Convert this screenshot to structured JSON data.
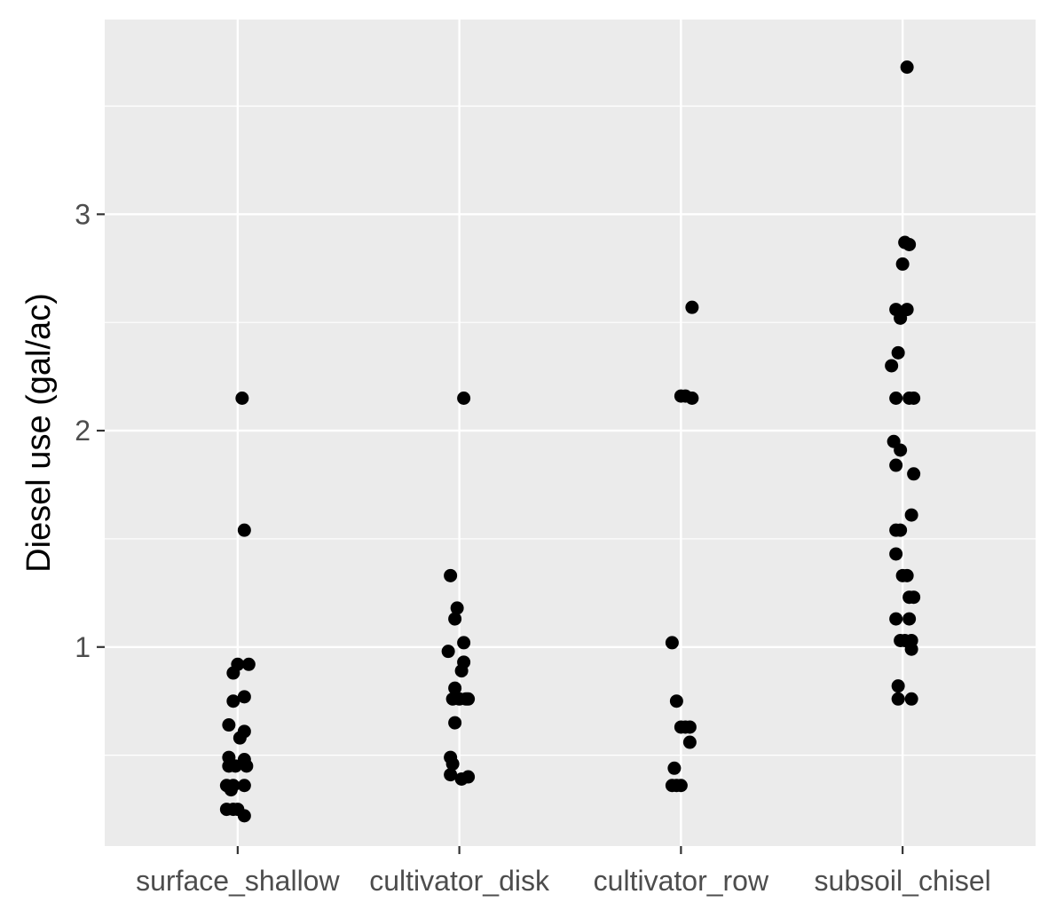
{
  "chart_data": {
    "type": "scatter",
    "jitter": true,
    "title": "",
    "xlabel": "",
    "ylabel": "Diesel use (gal/ac)",
    "categories": [
      "surface_shallow",
      "cultivator_disk",
      "cultivator_row",
      "subsoil_chisel"
    ],
    "ylim": [
      0.08,
      3.9
    ],
    "yticks": [
      1,
      2,
      3
    ],
    "grid": true,
    "legend": "none",
    "colors": {
      "panel": "#EBEBEB",
      "grid": "#FFFFFF",
      "point": "#000000",
      "tick": "#333333"
    },
    "points": [
      {
        "category": "surface_shallow",
        "jitter": 0.02,
        "y": 2.15
      },
      {
        "category": "surface_shallow",
        "jitter": 0.03,
        "y": 1.54
      },
      {
        "category": "surface_shallow",
        "jitter": 0.0,
        "y": 0.92
      },
      {
        "category": "surface_shallow",
        "jitter": 0.05,
        "y": 0.92
      },
      {
        "category": "surface_shallow",
        "jitter": -0.02,
        "y": 0.88
      },
      {
        "category": "surface_shallow",
        "jitter": 0.03,
        "y": 0.77
      },
      {
        "category": "surface_shallow",
        "jitter": -0.02,
        "y": 0.75
      },
      {
        "category": "surface_shallow",
        "jitter": -0.04,
        "y": 0.64
      },
      {
        "category": "surface_shallow",
        "jitter": 0.03,
        "y": 0.61
      },
      {
        "category": "surface_shallow",
        "jitter": 0.01,
        "y": 0.58
      },
      {
        "category": "surface_shallow",
        "jitter": -0.04,
        "y": 0.49
      },
      {
        "category": "surface_shallow",
        "jitter": 0.03,
        "y": 0.48
      },
      {
        "category": "surface_shallow",
        "jitter": -0.04,
        "y": 0.45
      },
      {
        "category": "surface_shallow",
        "jitter": -0.01,
        "y": 0.45
      },
      {
        "category": "surface_shallow",
        "jitter": 0.04,
        "y": 0.45
      },
      {
        "category": "surface_shallow",
        "jitter": -0.05,
        "y": 0.36
      },
      {
        "category": "surface_shallow",
        "jitter": -0.02,
        "y": 0.36
      },
      {
        "category": "surface_shallow",
        "jitter": 0.03,
        "y": 0.36
      },
      {
        "category": "surface_shallow",
        "jitter": -0.03,
        "y": 0.34
      },
      {
        "category": "surface_shallow",
        "jitter": -0.05,
        "y": 0.25
      },
      {
        "category": "surface_shallow",
        "jitter": -0.02,
        "y": 0.25
      },
      {
        "category": "surface_shallow",
        "jitter": 0.0,
        "y": 0.25
      },
      {
        "category": "surface_shallow",
        "jitter": 0.03,
        "y": 0.22
      },
      {
        "category": "cultivator_disk",
        "jitter": 0.02,
        "y": 2.15
      },
      {
        "category": "cultivator_disk",
        "jitter": -0.04,
        "y": 1.33
      },
      {
        "category": "cultivator_disk",
        "jitter": -0.01,
        "y": 1.18
      },
      {
        "category": "cultivator_disk",
        "jitter": -0.02,
        "y": 1.13
      },
      {
        "category": "cultivator_disk",
        "jitter": 0.02,
        "y": 1.02
      },
      {
        "category": "cultivator_disk",
        "jitter": -0.05,
        "y": 0.98
      },
      {
        "category": "cultivator_disk",
        "jitter": 0.02,
        "y": 0.93
      },
      {
        "category": "cultivator_disk",
        "jitter": 0.01,
        "y": 0.89
      },
      {
        "category": "cultivator_disk",
        "jitter": -0.02,
        "y": 0.81
      },
      {
        "category": "cultivator_disk",
        "jitter": -0.03,
        "y": 0.76
      },
      {
        "category": "cultivator_disk",
        "jitter": 0.0,
        "y": 0.76
      },
      {
        "category": "cultivator_disk",
        "jitter": 0.03,
        "y": 0.76
      },
      {
        "category": "cultivator_disk",
        "jitter": 0.04,
        "y": 0.76
      },
      {
        "category": "cultivator_disk",
        "jitter": -0.02,
        "y": 0.65
      },
      {
        "category": "cultivator_disk",
        "jitter": -0.04,
        "y": 0.49
      },
      {
        "category": "cultivator_disk",
        "jitter": -0.03,
        "y": 0.46
      },
      {
        "category": "cultivator_disk",
        "jitter": -0.04,
        "y": 0.41
      },
      {
        "category": "cultivator_disk",
        "jitter": 0.01,
        "y": 0.39
      },
      {
        "category": "cultivator_disk",
        "jitter": 0.04,
        "y": 0.4
      },
      {
        "category": "cultivator_row",
        "jitter": 0.05,
        "y": 2.57
      },
      {
        "category": "cultivator_row",
        "jitter": 0.0,
        "y": 2.16
      },
      {
        "category": "cultivator_row",
        "jitter": 0.02,
        "y": 2.16
      },
      {
        "category": "cultivator_row",
        "jitter": 0.05,
        "y": 2.15
      },
      {
        "category": "cultivator_row",
        "jitter": -0.04,
        "y": 1.02
      },
      {
        "category": "cultivator_row",
        "jitter": -0.02,
        "y": 0.75
      },
      {
        "category": "cultivator_row",
        "jitter": 0.0,
        "y": 0.63
      },
      {
        "category": "cultivator_row",
        "jitter": 0.02,
        "y": 0.63
      },
      {
        "category": "cultivator_row",
        "jitter": 0.04,
        "y": 0.63
      },
      {
        "category": "cultivator_row",
        "jitter": 0.04,
        "y": 0.56
      },
      {
        "category": "cultivator_row",
        "jitter": -0.03,
        "y": 0.44
      },
      {
        "category": "cultivator_row",
        "jitter": -0.04,
        "y": 0.36
      },
      {
        "category": "cultivator_row",
        "jitter": -0.02,
        "y": 0.36
      },
      {
        "category": "cultivator_row",
        "jitter": 0.0,
        "y": 0.36
      },
      {
        "category": "subsoil_chisel",
        "jitter": 0.02,
        "y": 3.68
      },
      {
        "category": "subsoil_chisel",
        "jitter": 0.01,
        "y": 2.87
      },
      {
        "category": "subsoil_chisel",
        "jitter": 0.03,
        "y": 2.86
      },
      {
        "category": "subsoil_chisel",
        "jitter": 0.0,
        "y": 2.77
      },
      {
        "category": "subsoil_chisel",
        "jitter": -0.03,
        "y": 2.56
      },
      {
        "category": "subsoil_chisel",
        "jitter": 0.02,
        "y": 2.56
      },
      {
        "category": "subsoil_chisel",
        "jitter": -0.01,
        "y": 2.52
      },
      {
        "category": "subsoil_chisel",
        "jitter": -0.02,
        "y": 2.36
      },
      {
        "category": "subsoil_chisel",
        "jitter": -0.05,
        "y": 2.3
      },
      {
        "category": "subsoil_chisel",
        "jitter": -0.03,
        "y": 2.15
      },
      {
        "category": "subsoil_chisel",
        "jitter": 0.03,
        "y": 2.15
      },
      {
        "category": "subsoil_chisel",
        "jitter": 0.05,
        "y": 2.15
      },
      {
        "category": "subsoil_chisel",
        "jitter": -0.04,
        "y": 1.95
      },
      {
        "category": "subsoil_chisel",
        "jitter": -0.01,
        "y": 1.91
      },
      {
        "category": "subsoil_chisel",
        "jitter": -0.03,
        "y": 1.84
      },
      {
        "category": "subsoil_chisel",
        "jitter": 0.05,
        "y": 1.8
      },
      {
        "category": "subsoil_chisel",
        "jitter": 0.04,
        "y": 1.61
      },
      {
        "category": "subsoil_chisel",
        "jitter": -0.03,
        "y": 1.54
      },
      {
        "category": "subsoil_chisel",
        "jitter": -0.01,
        "y": 1.54
      },
      {
        "category": "subsoil_chisel",
        "jitter": -0.03,
        "y": 1.43
      },
      {
        "category": "subsoil_chisel",
        "jitter": 0.0,
        "y": 1.33
      },
      {
        "category": "subsoil_chisel",
        "jitter": 0.02,
        "y": 1.33
      },
      {
        "category": "subsoil_chisel",
        "jitter": 0.03,
        "y": 1.23
      },
      {
        "category": "subsoil_chisel",
        "jitter": 0.05,
        "y": 1.23
      },
      {
        "category": "subsoil_chisel",
        "jitter": -0.03,
        "y": 1.13
      },
      {
        "category": "subsoil_chisel",
        "jitter": 0.03,
        "y": 1.13
      },
      {
        "category": "subsoil_chisel",
        "jitter": -0.01,
        "y": 1.03
      },
      {
        "category": "subsoil_chisel",
        "jitter": 0.01,
        "y": 1.03
      },
      {
        "category": "subsoil_chisel",
        "jitter": 0.04,
        "y": 1.03
      },
      {
        "category": "subsoil_chisel",
        "jitter": 0.04,
        "y": 0.99
      },
      {
        "category": "subsoil_chisel",
        "jitter": -0.02,
        "y": 0.82
      },
      {
        "category": "subsoil_chisel",
        "jitter": -0.02,
        "y": 0.76
      },
      {
        "category": "subsoil_chisel",
        "jitter": 0.04,
        "y": 0.76
      }
    ]
  }
}
